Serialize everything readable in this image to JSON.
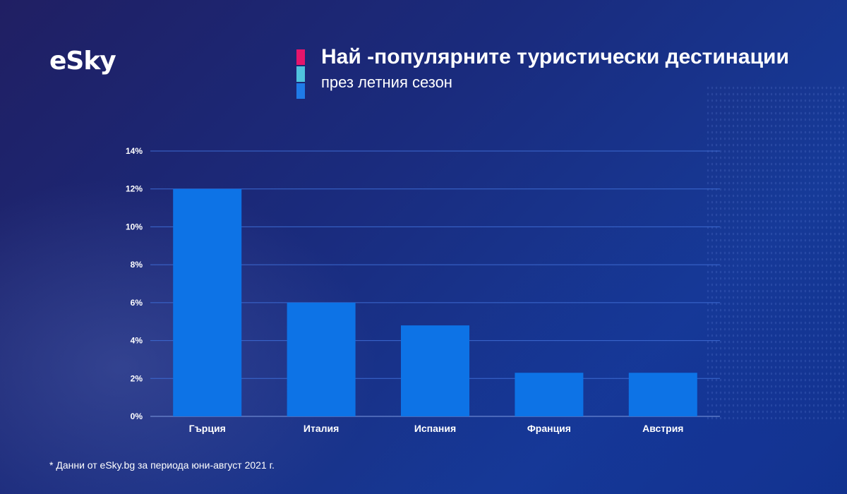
{
  "brand": {
    "logo_text": "eSky",
    "accent_colors": [
      "#e5156b",
      "#4fc3dd",
      "#1f7be8"
    ]
  },
  "header": {
    "title": "Най -популярните туристически дестинации",
    "subtitle": "през летния сезон"
  },
  "footnote": "* Данни от eSky.bg за периода юни-август 2021 г.",
  "chart_data": {
    "type": "bar",
    "categories": [
      "Гърция",
      "Италия",
      "Испания",
      "Франция",
      "Австрия"
    ],
    "values": [
      12,
      6,
      4.8,
      2.3,
      2.3
    ],
    "title": "",
    "xlabel": "",
    "ylabel": "",
    "ylim": [
      0,
      14
    ],
    "yticks": [
      0,
      2,
      4,
      6,
      8,
      10,
      12,
      14
    ],
    "ytick_labels": [
      "0%",
      "2%",
      "4%",
      "6%",
      "8%",
      "10%",
      "12%",
      "14%"
    ],
    "grid": true,
    "bar_color": "#0d73e6",
    "grid_color": "#3d6ad1"
  }
}
